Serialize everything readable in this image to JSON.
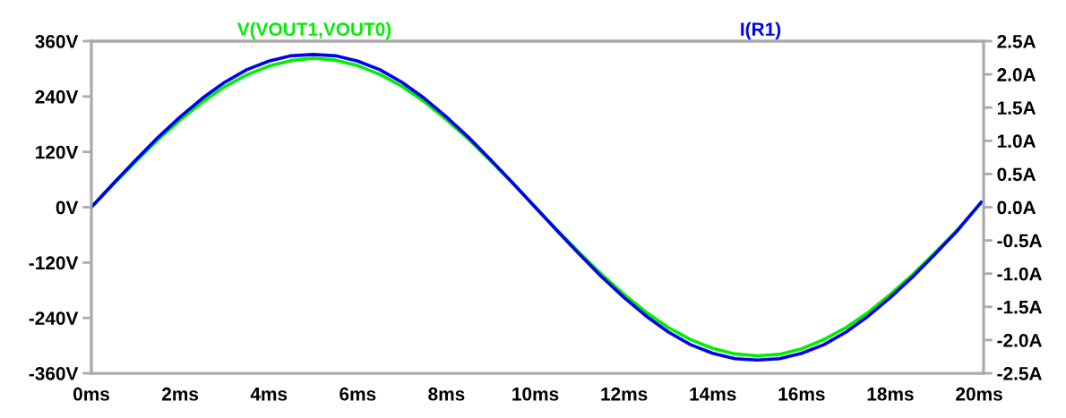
{
  "chart_data": {
    "type": "line",
    "x": [
      0,
      0.5,
      1,
      1.5,
      2,
      2.5,
      3,
      3.5,
      4,
      4.5,
      5,
      5.5,
      6,
      6.5,
      7,
      7.5,
      8,
      8.5,
      9,
      9.5,
      10,
      10.5,
      11,
      11.5,
      12,
      12.5,
      13,
      13.5,
      14,
      14.5,
      15,
      15.5,
      16,
      16.5,
      17,
      17.5,
      18,
      18.5,
      19,
      19.5,
      20.05
    ],
    "series": [
      {
        "name": "V(VOUT1,VOUT0)",
        "color": "#00ee00",
        "values": [
          0,
          50,
          99,
          146,
          189,
          228,
          261,
          287,
          306,
          318,
          323,
          319,
          307,
          288,
          262,
          229,
          190,
          147,
          100,
          51,
          0,
          -50,
          -99,
          -146,
          -189,
          -228,
          -261,
          -287,
          -306,
          -318,
          -322,
          -319,
          -307,
          -287,
          -261,
          -228,
          -189,
          -146,
          -99,
          -50,
          10
        ]
      },
      {
        "name": "I(R1)",
        "color": "#0000ee",
        "axis": "y2",
        "values": [
          0,
          0.36,
          0.71,
          1.05,
          1.36,
          1.64,
          1.88,
          2.07,
          2.2,
          2.28,
          2.3,
          2.28,
          2.2,
          2.07,
          1.88,
          1.64,
          1.36,
          1.05,
          0.71,
          0.36,
          0,
          -0.36,
          -0.71,
          -1.05,
          -1.36,
          -1.64,
          -1.88,
          -2.07,
          -2.2,
          -2.28,
          -2.3,
          -2.28,
          -2.2,
          -2.07,
          -1.88,
          -1.64,
          -1.36,
          -1.05,
          -0.71,
          -0.36,
          0.08
        ]
      }
    ],
    "xlim": [
      0,
      20.1
    ],
    "xticks": [
      {
        "value": 0,
        "label": "0ms"
      },
      {
        "value": 2,
        "label": "2ms"
      },
      {
        "value": 4,
        "label": "4ms"
      },
      {
        "value": 6,
        "label": "6ms"
      },
      {
        "value": 8,
        "label": "8ms"
      },
      {
        "value": 10,
        "label": "10ms"
      },
      {
        "value": 12,
        "label": "12ms"
      },
      {
        "value": 14,
        "label": "14ms"
      },
      {
        "value": 16,
        "label": "16ms"
      },
      {
        "value": 18,
        "label": "18ms"
      },
      {
        "value": 20,
        "label": "20ms"
      }
    ],
    "ylim": [
      -360,
      360
    ],
    "yticks": [
      {
        "value": -360,
        "label": "-360V"
      },
      {
        "value": -240,
        "label": "-240V"
      },
      {
        "value": -120,
        "label": "-120V"
      },
      {
        "value": 0,
        "label": "0V"
      },
      {
        "value": 120,
        "label": "120V"
      },
      {
        "value": 240,
        "label": "240V"
      },
      {
        "value": 360,
        "label": "360V"
      }
    ],
    "y2lim": [
      -2.5,
      2.5
    ],
    "y2ticks": [
      {
        "value": -2.5,
        "label": "-2.5A"
      },
      {
        "value": -2.0,
        "label": "-2.0A"
      },
      {
        "value": -1.5,
        "label": "-1.5A"
      },
      {
        "value": -1.0,
        "label": "-1.0A"
      },
      {
        "value": -0.5,
        "label": "-0.5A"
      },
      {
        "value": 0,
        "label": "0.0A"
      },
      {
        "value": 0.5,
        "label": "0.5A"
      },
      {
        "value": 1.0,
        "label": "1.0A"
      },
      {
        "value": 1.5,
        "label": "1.5A"
      },
      {
        "value": 2.0,
        "label": "2.0A"
      },
      {
        "value": 2.5,
        "label": "2.5A"
      }
    ],
    "grid": false
  }
}
